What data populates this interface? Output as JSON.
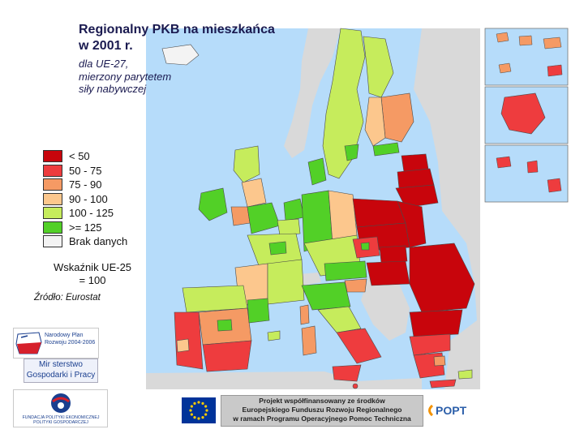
{
  "title_line1": "Regionalny PKB na mieszkańca",
  "title_line2": "w 2001 r.",
  "subtitle_lines": [
    "dla UE-27,",
    "mierzony parytetem",
    "siły nabywczej"
  ],
  "legend": [
    {
      "label": "< 50",
      "color": "#c8050c"
    },
    {
      "label": "50 - 75",
      "color": "#ee3c3e"
    },
    {
      "label": "75 - 90",
      "color": "#f59a64"
    },
    {
      "label": "90 - 100",
      "color": "#fcc78d"
    },
    {
      "label": "100 - 125",
      "color": "#c6ec5c"
    },
    {
      "label": ">= 125",
      "color": "#52d027"
    },
    {
      "label": "Brak danych",
      "color": "#f3f3f3"
    }
  ],
  "indicator_line1": "Wskaźnik UE-25",
  "indicator_line2": "= 100",
  "source": "Źródło: Eurostat",
  "logos": {
    "npr_lines": [
      "Narodowy Plan",
      "Rozwoju 2004-2006"
    ],
    "ministry_lines": [
      "Mir sterstwo",
      "Gospodarki i Pracy"
    ],
    "fundacja_lines": [
      "FUNDACJA POLITYKI EKONOMICZNEJ",
      "POLITYKI GOSPODARCZEJ"
    ],
    "project_lines": [
      "Projekt współfinansowany ze środków",
      "Europejskiego Funduszu Rozwoju Regionalnego",
      "w ramach Programu Operacyjnego Pomoc Techniczna"
    ],
    "popt": "POPT"
  },
  "colors": {
    "sea": "#b6dcfa",
    "non_eu_land": "#d9d9d9",
    "border": "#4a4a4a"
  }
}
